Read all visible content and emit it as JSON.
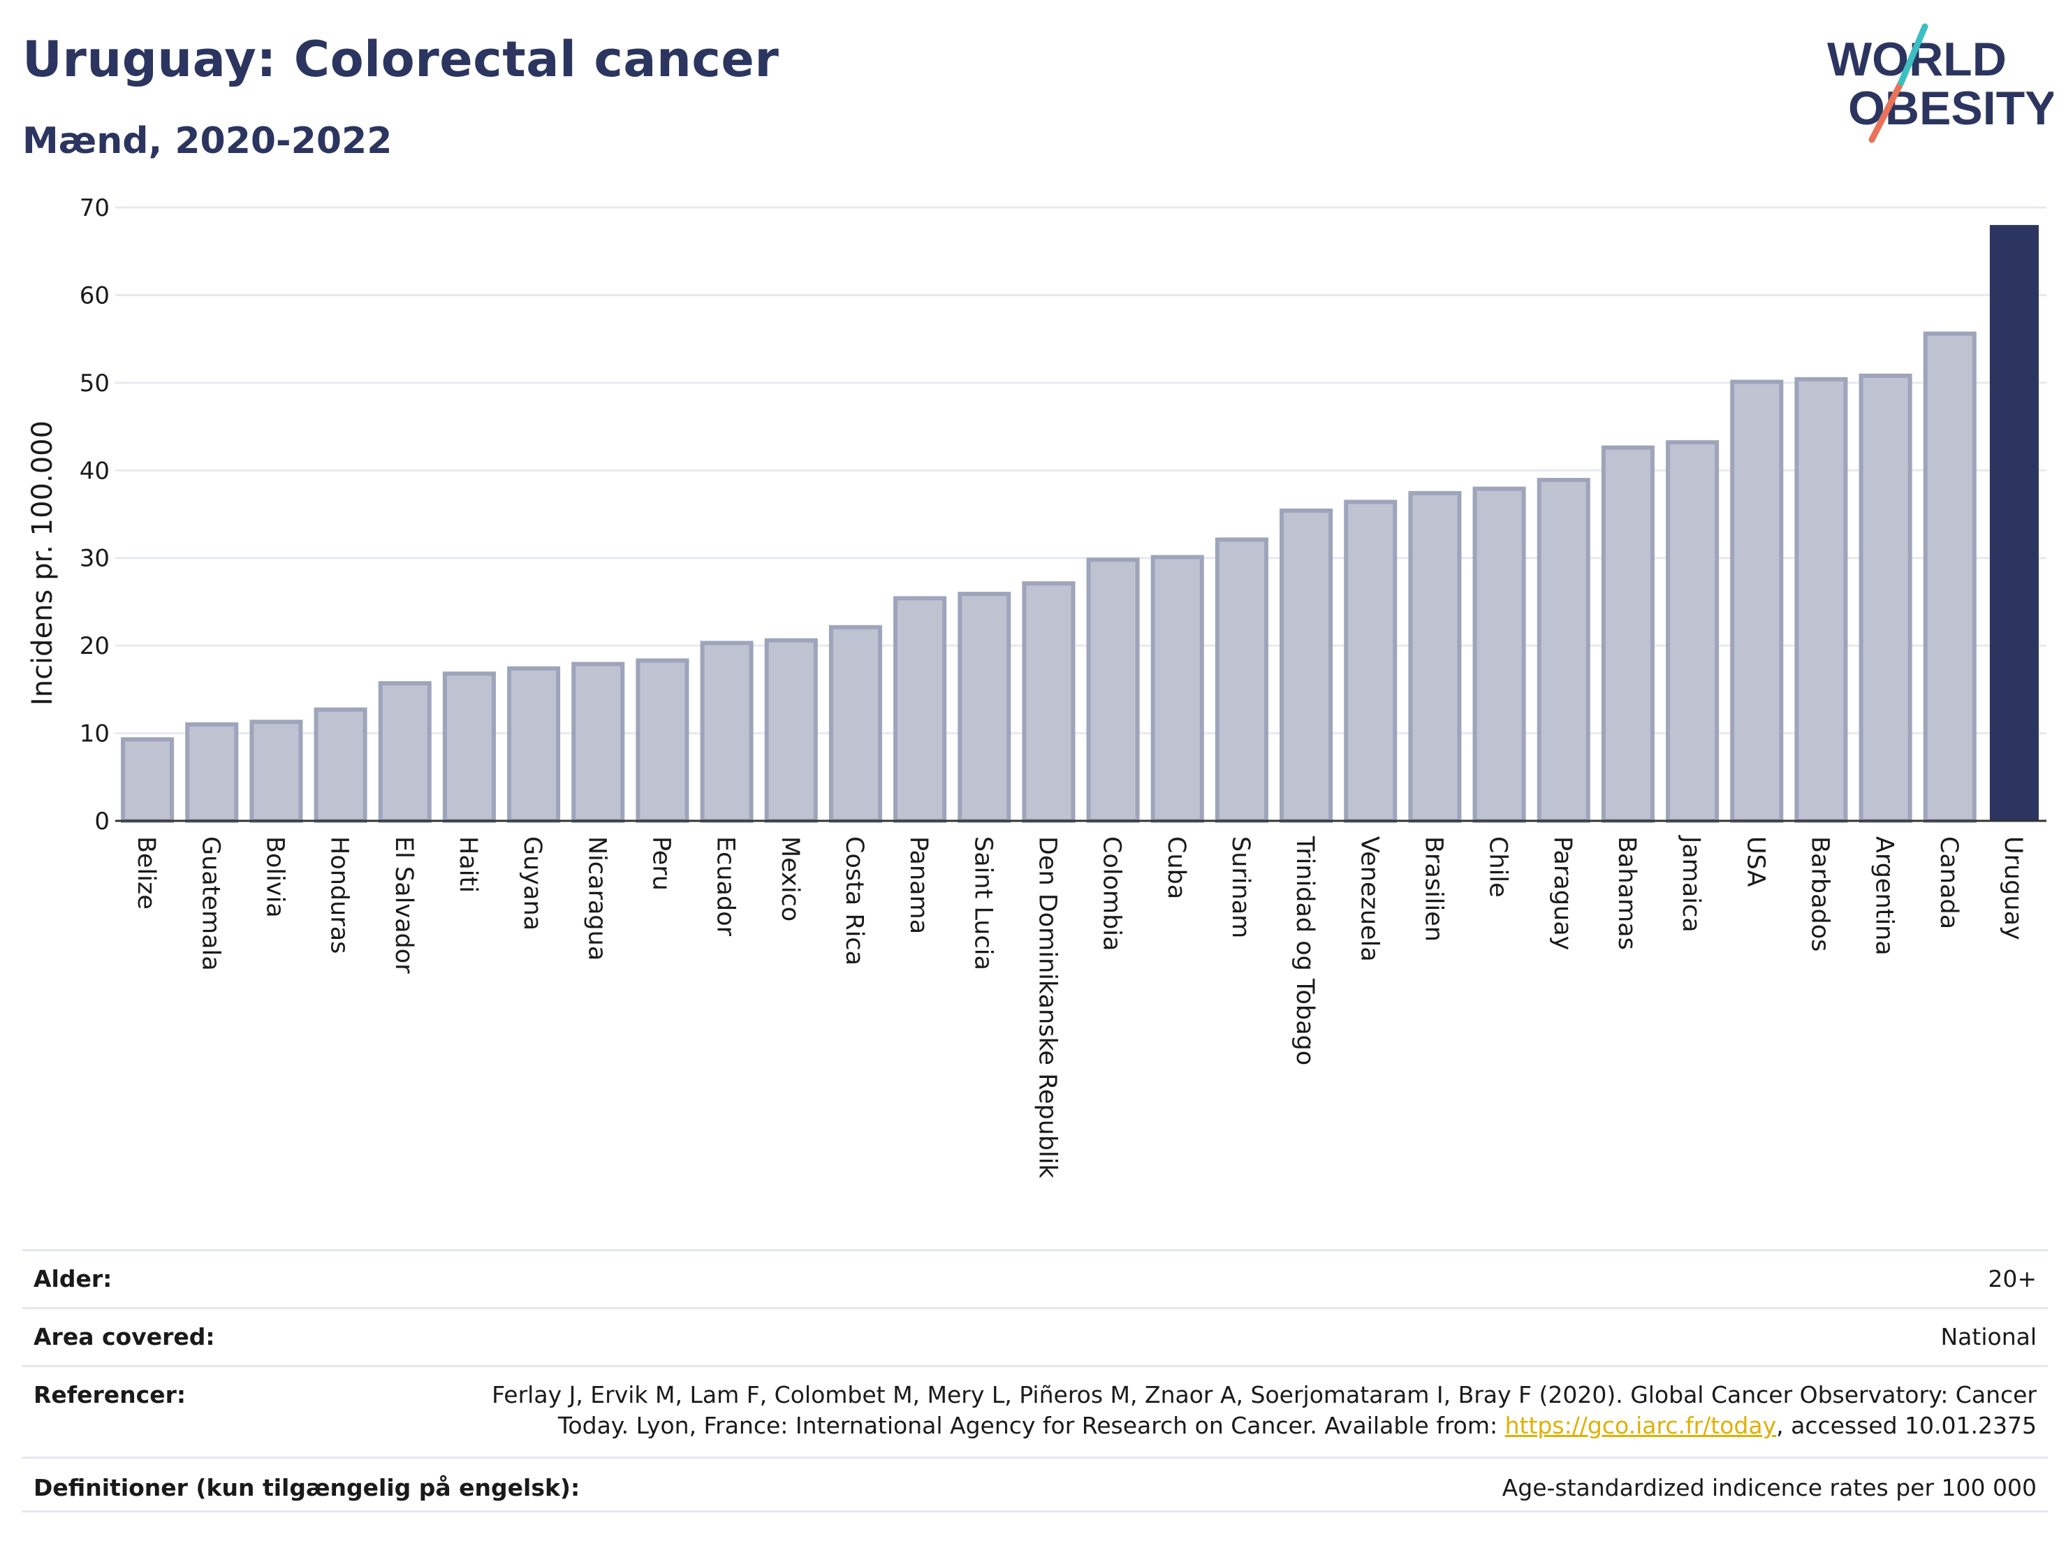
{
  "header": {
    "title": "Uruguay: Colorectal cancer",
    "subtitle": "Mænd, 2020-2022",
    "logo_line1": "WORLD",
    "logo_line2": "OBESITY"
  },
  "colors": {
    "title": "#2b3560",
    "bar_default": "#bfc3d1",
    "bar_default_border": "#9ea4bb",
    "bar_highlight": "#2b3560",
    "grid": "#e6e9ef",
    "logo_teal": "#3bbfc1",
    "logo_coral": "#e8735a"
  },
  "chart_data": {
    "type": "bar",
    "ylabel": "Incidens pr. 100.000",
    "ylim": [
      0,
      70
    ],
    "yticks": [
      0,
      10,
      20,
      30,
      40,
      50,
      60,
      70
    ],
    "grid": true,
    "highlight": "Uruguay",
    "categories": [
      "Belize",
      "Guatemala",
      "Bolivia",
      "Honduras",
      "El Salvador",
      "Haiti",
      "Guyana",
      "Nicaragua",
      "Peru",
      "Ecuador",
      "Mexico",
      "Costa Rica",
      "Panama",
      "Saint Lucia",
      "Den Dominikanske Republik",
      "Colombia",
      "Cuba",
      "Surinam",
      "Trinidad og Tobago",
      "Venezuela",
      "Brasilien",
      "Chile",
      "Paraguay",
      "Bahamas",
      "Jamaica",
      "USA",
      "Barbados",
      "Argentina",
      "Canada",
      "Uruguay"
    ],
    "values": [
      9.3,
      11.0,
      11.3,
      12.7,
      15.7,
      16.8,
      17.4,
      17.9,
      18.3,
      20.3,
      20.6,
      22.1,
      25.4,
      25.9,
      27.1,
      29.8,
      30.1,
      32.1,
      35.4,
      36.4,
      37.4,
      37.9,
      38.9,
      42.6,
      43.2,
      50.1,
      50.4,
      50.8,
      55.6,
      68.0
    ]
  },
  "info": {
    "rows": [
      {
        "label": "Alder:",
        "value": "20+"
      },
      {
        "label": "Area covered:",
        "value": "National"
      },
      {
        "label": "Referencer:",
        "value_line1": "Ferlay J, Ervik M, Lam F, Colombet M, Mery L, Piñeros M, Znaor A, Soerjomataram I, Bray F (2020). Global Cancer Observatory: Cancer",
        "value_line2_pre": "Today. Lyon, France: International Agency for Research on Cancer. Available from: ",
        "link": "https://gco.iarc.fr/today",
        "value_line2_post": ", accessed 10.01.2375"
      },
      {
        "label": "Definitioner (kun tilgængelig på engelsk):",
        "value": "Age-standardized indicence rates per 100 000"
      }
    ]
  }
}
